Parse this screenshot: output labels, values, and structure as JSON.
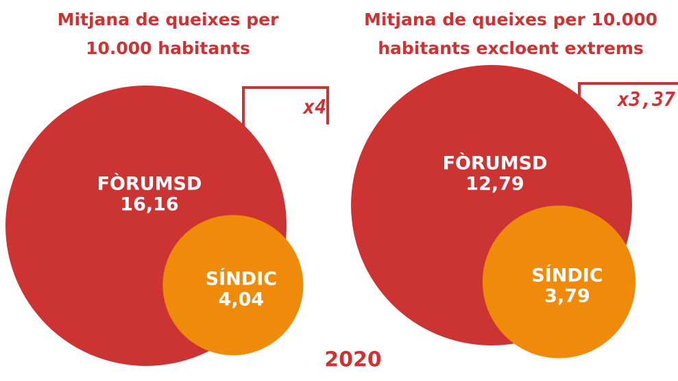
{
  "chart_data": [
    {
      "type": "bubble",
      "title": [
        "Mitjana de queixes per",
        "10.000 habitants"
      ],
      "categories": [
        "FÒRUMSD",
        "SÍNDIC"
      ],
      "values": [
        16.16,
        4.04
      ],
      "value_labels": [
        "16,16",
        "4,04"
      ],
      "colors": [
        "#cc3333",
        "#f08a0a"
      ],
      "annotation": "x4"
    },
    {
      "type": "bubble",
      "title": [
        "Mitjana de queixes per 10.000",
        "habitants excloent extrems"
      ],
      "categories": [
        "FÒRUMSD",
        "SÍNDIC"
      ],
      "values": [
        12.79,
        3.79
      ],
      "value_labels": [
        "12,79",
        "3,79"
      ],
      "colors": [
        "#cc3333",
        "#f08a0a"
      ],
      "annotation": "x3,37"
    }
  ],
  "footer": "2020"
}
